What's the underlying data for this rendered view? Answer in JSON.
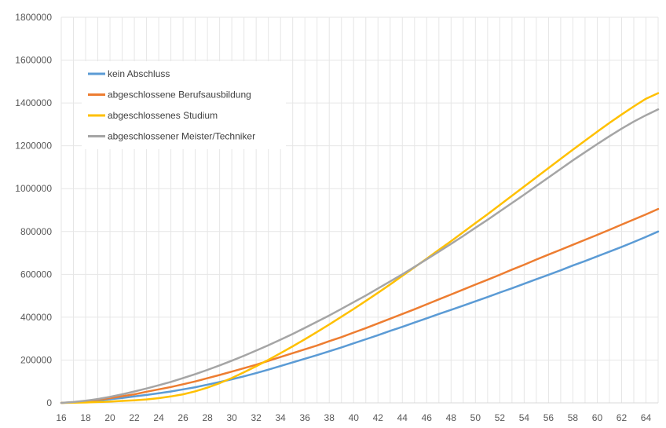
{
  "chart_data": {
    "type": "line",
    "x": [
      16,
      17,
      18,
      19,
      20,
      21,
      22,
      23,
      24,
      25,
      26,
      27,
      28,
      29,
      30,
      31,
      32,
      33,
      34,
      35,
      36,
      37,
      38,
      39,
      40,
      41,
      42,
      43,
      44,
      45,
      46,
      47,
      48,
      49,
      50,
      51,
      52,
      53,
      54,
      55,
      56,
      57,
      58,
      59,
      60,
      61,
      62,
      63,
      64,
      65
    ],
    "xticks": [
      "16",
      "18",
      "20",
      "22",
      "24",
      "26",
      "28",
      "30",
      "32",
      "34",
      "36",
      "38",
      "40",
      "42",
      "44",
      "46",
      "48",
      "50",
      "52",
      "54",
      "56",
      "58",
      "60",
      "62",
      "64"
    ],
    "yticks": [
      "0",
      "200000",
      "400000",
      "600000",
      "800000",
      "1000000",
      "1200000",
      "1400000",
      "1600000",
      "1800000"
    ],
    "ylim": [
      0,
      1800000
    ],
    "grid": true,
    "legend_position": "top-left",
    "series": [
      {
        "name": "kein Abschluss",
        "color": "#5b9bd5",
        "values": [
          0,
          2000,
          6000,
          11000,
          17000,
          23000,
          30000,
          37000,
          45000,
          53000,
          63000,
          73000,
          85000,
          97000,
          110000,
          124000,
          139000,
          155000,
          172000,
          189000,
          206000,
          223000,
          241000,
          259000,
          278000,
          297000,
          316000,
          336000,
          355000,
          375000,
          395000,
          415000,
          434000,
          454000,
          474000,
          494000,
          515000,
          535000,
          556000,
          577000,
          598000,
          619000,
          641000,
          662000,
          684000,
          706000,
          728000,
          751000,
          775000,
          800000
        ]
      },
      {
        "name": "abgeschlossene Berufsausbildung",
        "color": "#ed7d31",
        "values": [
          0,
          3000,
          8000,
          15000,
          22000,
          31000,
          40000,
          52000,
          63000,
          74000,
          87000,
          100000,
          115000,
          130000,
          146000,
          162000,
          178000,
          196000,
          214000,
          232000,
          250000,
          268000,
          288000,
          307000,
          328000,
          349000,
          371000,
          393000,
          415000,
          437000,
          460000,
          483000,
          506000,
          529000,
          552000,
          575000,
          598000,
          622000,
          645000,
          669000,
          692000,
          715000,
          738000,
          761000,
          784000,
          808000,
          832000,
          856000,
          880000,
          905000
        ]
      },
      {
        "name": "abgeschlossenes Studium",
        "color": "#ffc000",
        "values": [
          0,
          1000,
          2000,
          4000,
          6000,
          9000,
          12000,
          16000,
          22000,
          30000,
          40000,
          54000,
          71000,
          92000,
          116000,
          143000,
          171000,
          201000,
          232000,
          264000,
          297000,
          331000,
          366000,
          402000,
          438000,
          476000,
          514000,
          553000,
          593000,
          633000,
          673000,
          714000,
          755000,
          797000,
          839000,
          881000,
          924000,
          967000,
          1010000,
          1053000,
          1096000,
          1139000,
          1182000,
          1224000,
          1266000,
          1307000,
          1346000,
          1384000,
          1420000,
          1446000
        ]
      },
      {
        "name": "abgeschlossener Meister/Techniker",
        "color": "#a5a5a5",
        "values": [
          0,
          4000,
          10000,
          18000,
          28000,
          40000,
          53000,
          67000,
          82000,
          98000,
          116000,
          134000,
          154000,
          175000,
          197000,
          220000,
          244000,
          269000,
          295000,
          322000,
          350000,
          379000,
          408000,
          439000,
          470000,
          501000,
          534000,
          567000,
          600000,
          635000,
          670000,
          706000,
          742000,
          779000,
          817000,
          855000,
          894000,
          933000,
          972000,
          1012000,
          1052000,
          1092000,
          1132000,
          1170000,
          1208000,
          1245000,
          1280000,
          1313000,
          1343000,
          1370000
        ]
      }
    ]
  }
}
